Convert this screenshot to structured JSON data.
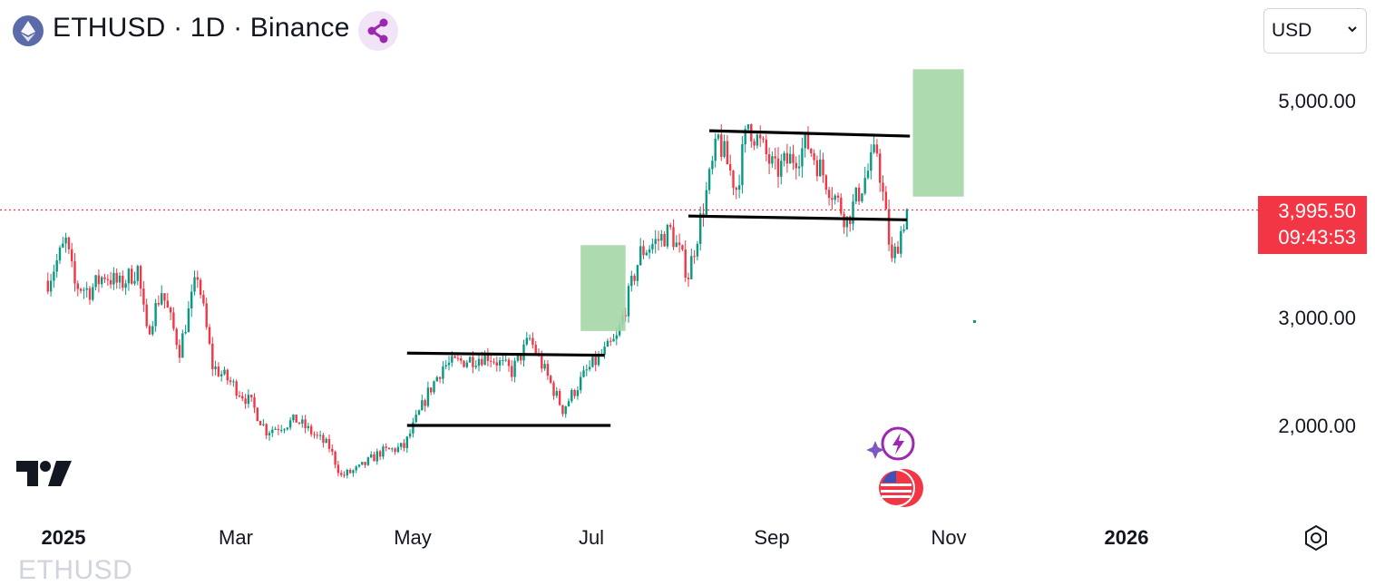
{
  "header": {
    "title": "ETHUSD · 1D · Binance",
    "symbol_icon": "ethereum-icon",
    "share_icon": "share-nodes-icon"
  },
  "currency_select": {
    "value": "USD",
    "icon": "chevron-down-icon"
  },
  "price_badge": {
    "price": "3,995.50",
    "countdown": "09:43:53",
    "color": "#f23645"
  },
  "y_axis": {
    "ticks": [
      "5,000.00",
      "3,000.00",
      "2,000.00"
    ]
  },
  "x_axis": {
    "ticks": [
      "2025",
      "Mar",
      "May",
      "Jul",
      "Sep",
      "Nov",
      "2026"
    ]
  },
  "watermark": "ETHUSD",
  "colors": {
    "up": "#089981",
    "down": "#f23645",
    "box": "#a5d6a7",
    "lines": "#000000",
    "price_line": "#f23645"
  },
  "chart_data": {
    "type": "candlestick",
    "ylim": [
      1300,
      5500
    ],
    "y_ticks": [
      5000,
      3000,
      2000
    ],
    "last_price": 3995.5,
    "series": [
      {
        "date": "2025-01-01",
        "close": 3340
      },
      {
        "date": "2025-01-07",
        "close": 3700
      },
      {
        "date": "2025-01-10",
        "close": 3300
      },
      {
        "date": "2025-01-15",
        "close": 3250
      },
      {
        "date": "2025-01-20",
        "close": 3400
      },
      {
        "date": "2025-01-25",
        "close": 3300
      },
      {
        "date": "2025-01-31",
        "close": 3450
      },
      {
        "date": "2025-02-03",
        "close": 2850
      },
      {
        "date": "2025-02-08",
        "close": 3250
      },
      {
        "date": "2025-02-14",
        "close": 2700
      },
      {
        "date": "2025-02-20",
        "close": 3400
      },
      {
        "date": "2025-02-25",
        "close": 2550
      },
      {
        "date": "2025-03-03",
        "close": 2400
      },
      {
        "date": "2025-03-10",
        "close": 2200
      },
      {
        "date": "2025-03-15",
        "close": 1950
      },
      {
        "date": "2025-03-25",
        "close": 2050
      },
      {
        "date": "2025-04-05",
        "close": 1800
      },
      {
        "date": "2025-04-09",
        "close": 1530
      },
      {
        "date": "2025-04-15",
        "close": 1600
      },
      {
        "date": "2025-04-22",
        "close": 1750
      },
      {
        "date": "2025-04-30",
        "close": 1800
      },
      {
        "date": "2025-05-08",
        "close": 2300
      },
      {
        "date": "2025-05-13",
        "close": 2550
      },
      {
        "date": "2025-05-20",
        "close": 2600
      },
      {
        "date": "2025-05-28",
        "close": 2650
      },
      {
        "date": "2025-06-05",
        "close": 2500
      },
      {
        "date": "2025-06-11",
        "close": 2800
      },
      {
        "date": "2025-06-22",
        "close": 2150
      },
      {
        "date": "2025-06-30",
        "close": 2500
      },
      {
        "date": "2025-07-10",
        "close": 2800
      },
      {
        "date": "2025-07-18",
        "close": 3600
      },
      {
        "date": "2025-07-28",
        "close": 3800
      },
      {
        "date": "2025-08-03",
        "close": 3400
      },
      {
        "date": "2025-08-13",
        "close": 4650
      },
      {
        "date": "2025-08-19",
        "close": 4200
      },
      {
        "date": "2025-08-23",
        "close": 4800
      },
      {
        "date": "2025-09-01",
        "close": 4350
      },
      {
        "date": "2025-09-12",
        "close": 4600
      },
      {
        "date": "2025-09-25",
        "close": 3900
      },
      {
        "date": "2025-10-05",
        "close": 4550
      },
      {
        "date": "2025-10-10",
        "close": 3500
      },
      {
        "date": "2025-10-15",
        "close": 3995.5
      }
    ]
  }
}
